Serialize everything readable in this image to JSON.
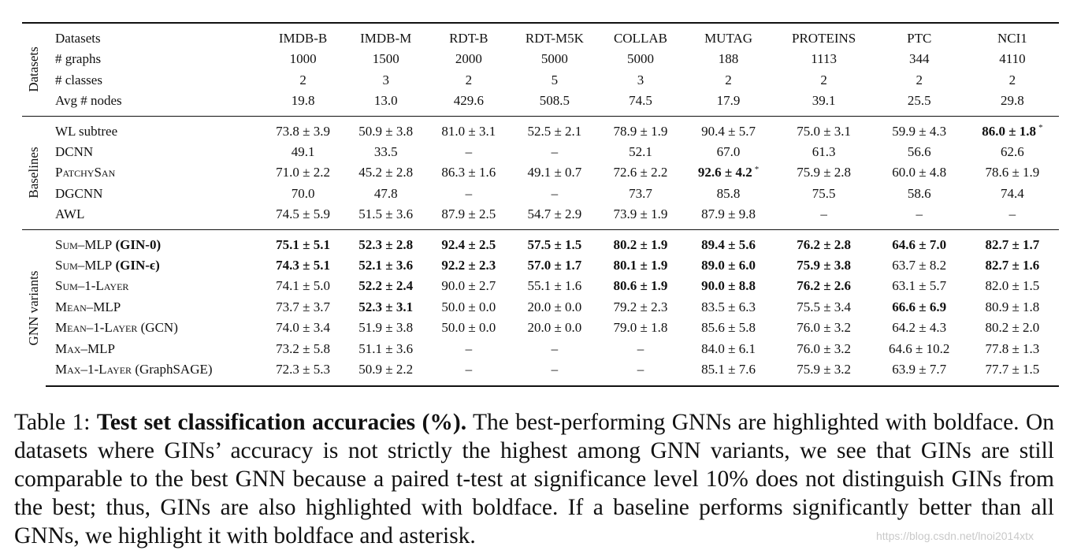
{
  "groups": {
    "datasets": "Datasets",
    "baselines": "Baselines",
    "gnn": "GNN variants"
  },
  "header": {
    "label": "Datasets",
    "columns": [
      "IMDB-B",
      "IMDB-M",
      "RDT-B",
      "RDT-M5K",
      "COLLAB",
      "MUTAG",
      "PROTEINS",
      "PTC",
      "NCI1"
    ]
  },
  "stats": [
    {
      "label": "# graphs",
      "values": [
        "1000",
        "1500",
        "2000",
        "5000",
        "5000",
        "188",
        "1113",
        "344",
        "4110"
      ]
    },
    {
      "label": "# classes",
      "values": [
        "2",
        "3",
        "2",
        "5",
        "3",
        "2",
        "2",
        "2",
        "2"
      ]
    },
    {
      "label": "Avg # nodes",
      "values": [
        "19.8",
        "13.0",
        "429.6",
        "508.5",
        "74.5",
        "17.9",
        "39.1",
        "25.5",
        "29.8"
      ]
    }
  ],
  "baselines": [
    {
      "label": "WL subtree",
      "values": [
        "73.8 ± 3.9",
        "50.9 ± 3.8",
        "81.0 ± 3.1",
        "52.5 ± 2.1",
        "78.9 ± 1.9",
        "90.4 ± 5.7",
        "75.0 ± 3.1",
        "59.9 ± 4.3",
        "86.0 ± 1.8"
      ]
    },
    {
      "label": "DCNN",
      "values": [
        "49.1",
        "33.5",
        "–",
        "–",
        "52.1",
        "67.0",
        "61.3",
        "56.6",
        "62.6"
      ]
    },
    {
      "label": "PatchySan",
      "values": [
        "71.0 ± 2.2",
        "45.2 ± 2.8",
        "86.3 ± 1.6",
        "49.1 ± 0.7",
        "72.6 ± 2.2",
        "92.6 ± 4.2",
        "75.9 ± 2.8",
        "60.0 ± 4.8",
        "78.6 ± 1.9"
      ]
    },
    {
      "label": "DGCNN",
      "values": [
        "70.0",
        "47.8",
        "–",
        "–",
        "73.7",
        "85.8",
        "75.5",
        "58.6",
        "74.4"
      ]
    },
    {
      "label": "AWL",
      "values": [
        "74.5 ± 5.9",
        "51.5 ± 3.6",
        "87.9 ± 2.5",
        "54.7 ± 2.9",
        "73.9 ± 1.9",
        "87.9 ± 9.8",
        "–",
        "–",
        "–"
      ]
    }
  ],
  "gnn": [
    {
      "label": "Sum–MLP",
      "suffix": "(GIN-0)",
      "values": [
        "75.1 ± 5.1",
        "52.3 ± 2.8",
        "92.4 ± 2.5",
        "57.5 ± 1.5",
        "80.2 ± 1.9",
        "89.4 ± 5.6",
        "76.2 ± 2.8",
        "64.6 ± 7.0",
        "82.7 ± 1.7"
      ]
    },
    {
      "label": "Sum–MLP",
      "suffix": "(GIN-ϵ)",
      "values": [
        "74.3 ± 5.1",
        "52.1 ± 3.6",
        "92.2 ± 2.3",
        "57.0 ± 1.7",
        "80.1 ± 1.9",
        "89.0 ± 6.0",
        "75.9 ± 3.8",
        "63.7 ± 8.2",
        "82.7 ± 1.6"
      ]
    },
    {
      "label": "Sum–1-Layer",
      "suffix": "",
      "values": [
        "74.1 ± 5.0",
        "52.2 ± 2.4",
        "90.0 ± 2.7",
        "55.1 ± 1.6",
        "80.6 ± 1.9",
        "90.0 ± 8.8",
        "76.2 ± 2.6",
        "63.1 ± 5.7",
        "82.0 ± 1.5"
      ]
    },
    {
      "label": "Mean–MLP",
      "suffix": "",
      "values": [
        "73.7 ± 3.7",
        "52.3 ± 3.1",
        "50.0 ± 0.0",
        "20.0 ± 0.0",
        "79.2 ± 2.3",
        "83.5 ± 6.3",
        "75.5 ± 3.4",
        "66.6 ± 6.9",
        "80.9 ± 1.8"
      ]
    },
    {
      "label": "Mean–1-Layer",
      "suffix": "(GCN)",
      "values": [
        "74.0 ± 3.4",
        "51.9 ± 3.8",
        "50.0 ± 0.0",
        "20.0 ± 0.0",
        "79.0 ± 1.8",
        "85.6 ± 5.8",
        "76.0 ± 3.2",
        "64.2 ± 4.3",
        "80.2 ± 2.0"
      ]
    },
    {
      "label": "Max–MLP",
      "suffix": "",
      "values": [
        "73.2 ± 5.8",
        "51.1 ± 3.6",
        "–",
        "–",
        "–",
        "84.0 ± 6.1",
        "76.0 ± 3.2",
        "64.6 ± 10.2",
        "77.8 ± 1.3"
      ]
    },
    {
      "label": "Max–1-Layer",
      "suffix": "(GraphSAGE)",
      "values": [
        "72.3 ± 5.3",
        "50.9 ± 2.2",
        "–",
        "–",
        "–",
        "85.1 ± 7.6",
        "75.9 ± 3.2",
        "63.9 ± 7.7",
        "77.7 ± 1.5"
      ]
    }
  ],
  "bold": {
    "baselines": [
      [
        0,
        8
      ],
      [
        2,
        5
      ]
    ],
    "asterisk": [
      [
        0,
        8
      ],
      [
        2,
        5
      ]
    ],
    "gnn": [
      [
        0,
        0
      ],
      [
        0,
        1
      ],
      [
        0,
        2
      ],
      [
        0,
        3
      ],
      [
        0,
        4
      ],
      [
        0,
        5
      ],
      [
        0,
        6
      ],
      [
        0,
        7
      ],
      [
        0,
        8
      ],
      [
        1,
        0
      ],
      [
        1,
        1
      ],
      [
        1,
        2
      ],
      [
        1,
        3
      ],
      [
        1,
        4
      ],
      [
        1,
        5
      ],
      [
        1,
        6
      ],
      [
        1,
        8
      ],
      [
        2,
        1
      ],
      [
        2,
        4
      ],
      [
        2,
        5
      ],
      [
        2,
        6
      ],
      [
        3,
        1
      ],
      [
        3,
        7
      ]
    ],
    "gnn_suffix": [
      0,
      1
    ]
  },
  "caption": {
    "prefix": "Table 1: ",
    "bold": "Test set classification accuracies (%).",
    "body": " The best-performing GNNs are highlighted with boldface. On datasets where GINs’ accuracy is not strictly the highest among GNN variants, we see that GINs are still comparable to the best GNN because a paired t-test at significance level 10% does not distinguish GINs from the best; thus, GINs are also highlighted with boldface. If a baseline performs significantly better than all GNNs, we highlight it with boldface and asterisk."
  },
  "watermark": "https://blog.csdn.net/lnoi2014xtx"
}
